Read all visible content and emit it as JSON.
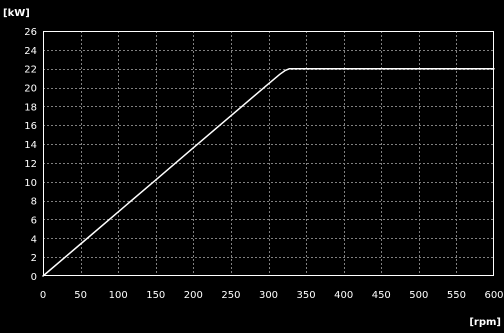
{
  "chart_data": {
    "type": "line",
    "title": "",
    "xlabel": "[rpm]",
    "ylabel": "[kW]",
    "xlim": [
      0,
      600
    ],
    "ylim": [
      0,
      26
    ],
    "xticks": [
      0,
      50,
      100,
      150,
      200,
      250,
      300,
      350,
      400,
      450,
      500,
      550,
      600
    ],
    "yticks": [
      0,
      2,
      4,
      6,
      8,
      10,
      12,
      14,
      16,
      18,
      20,
      22,
      24,
      26
    ],
    "grid": true,
    "grid_style": "dashed",
    "legend": "none",
    "series": [
      {
        "x": [
          0,
          50,
          100,
          150,
          200,
          250,
          300,
          315,
          322,
          328,
          335,
          400,
          500,
          600
        ],
        "y": [
          0,
          3.4,
          6.8,
          10.2,
          13.6,
          17.0,
          20.4,
          21.4,
          21.8,
          22.0,
          22.0,
          22.0,
          22.0,
          22.0
        ]
      }
    ]
  },
  "colors": {
    "background": "#000000",
    "axis": "#ffffff",
    "grid": "#808080",
    "text": "#ffffff",
    "line": "#ffffff"
  }
}
